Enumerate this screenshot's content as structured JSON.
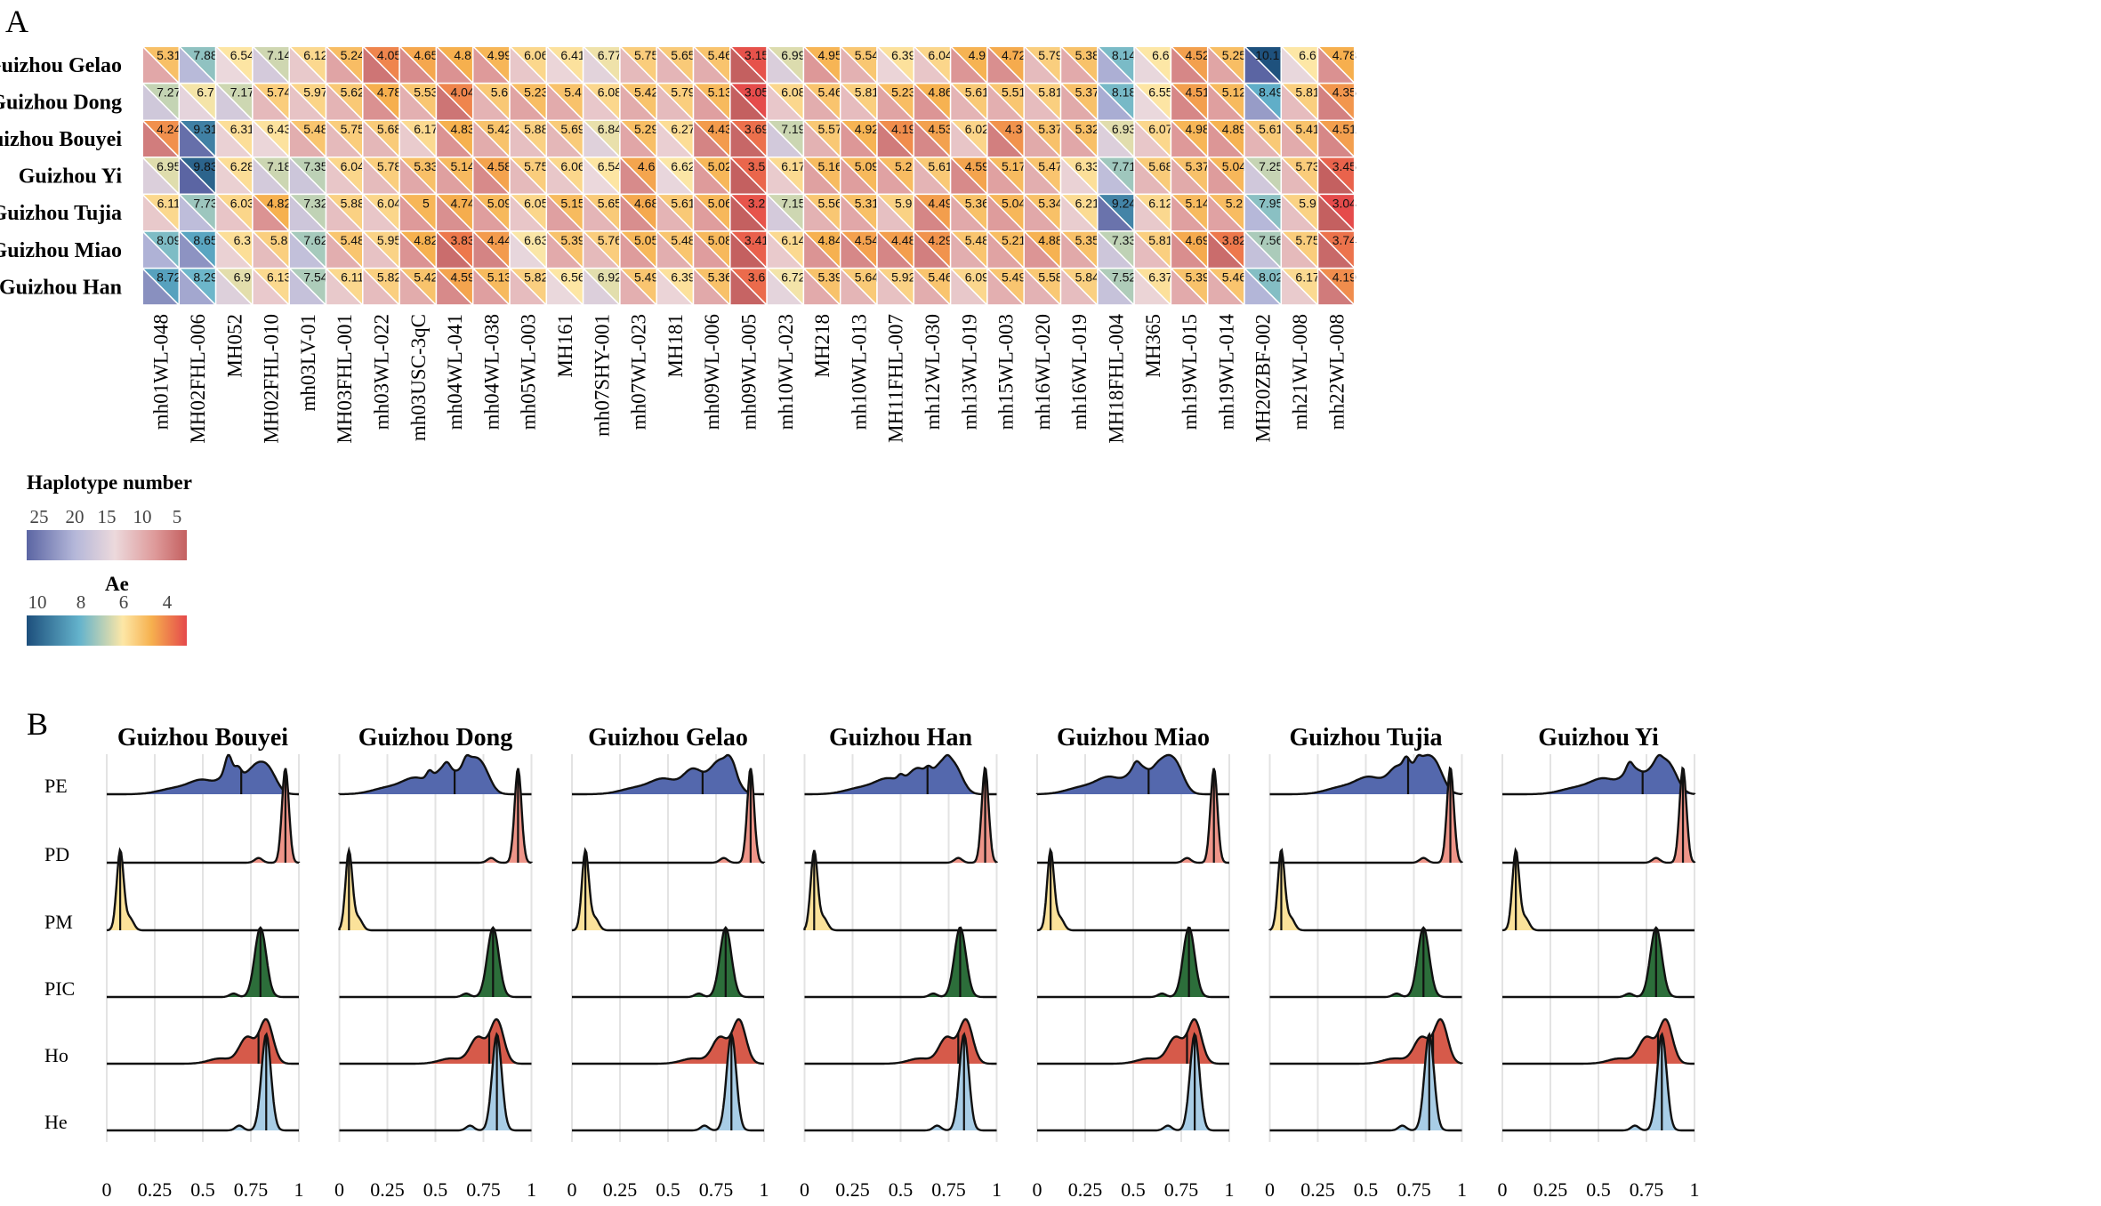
{
  "chart_data": [
    {
      "type": "heatmap",
      "panel": "A",
      "rows": [
        "Guizhou Gelao",
        "Guizhou Dong",
        "Guizhou Bouyei",
        "Guizhou Yi",
        "Guizhou Tujia",
        "Guizhou Miao",
        "Guizhou Han"
      ],
      "columns": [
        "mh01WL-048",
        "MH02FHL-006",
        "MH052",
        "MH02FHL-010",
        "mh03LV-01",
        "MH03FHL-001",
        "mh03WL-022",
        "mh03USC-3qC",
        "mh04WL-041",
        "mh04WL-038",
        "mh05WL-003",
        "MH161",
        "mh07SHY-001",
        "mh07WL-023",
        "MH181",
        "mh09WL-006",
        "mh09WL-005",
        "mh10WL-023",
        "MH218",
        "mh10WL-013",
        "MH11FHL-007",
        "mh12WL-030",
        "mh13WL-019",
        "mh15WL-003",
        "mh16WL-020",
        "mh16WL-019",
        "MH18FHL-004",
        "MH365",
        "mh19WL-015",
        "mh19WL-014",
        "MH20ZBF-002",
        "mh21WL-008",
        "mh22WL-008"
      ],
      "ae_values": [
        [
          "5.31",
          "7.88",
          "6.54",
          "7.14",
          "6.12",
          "5.24",
          "4.05",
          "4.65",
          "4.8",
          "4.99",
          "6.06",
          "6.41",
          "6.77",
          "5.75",
          "5.65",
          "5.46",
          "3.15",
          "6.99",
          "4.95",
          "5.54",
          "6.39",
          "6.04",
          "4.9",
          "4.72",
          "5.79",
          "5.38",
          "8.14",
          "6.6",
          "4.52",
          "5.25",
          "10.17",
          "6.6",
          "4.78"
        ],
        [
          "7.27",
          "6.7",
          "7.17",
          "5.74",
          "5.97",
          "5.62",
          "4.78",
          "5.53",
          "4.04",
          "5.6",
          "5.23",
          "5.4",
          "6.08",
          "5.42",
          "5.79",
          "5.13",
          "3.05",
          "6.08",
          "5.46",
          "5.81",
          "5.23",
          "4.86",
          "5.61",
          "5.51",
          "5.81",
          "5.37",
          "8.18",
          "6.55",
          "4.51",
          "5.12",
          "8.49",
          "5.81",
          "4.35"
        ],
        [
          "4.24",
          "9.31",
          "6.31",
          "6.43",
          "5.48",
          "5.75",
          "5.68",
          "6.17",
          "4.83",
          "5.42",
          "5.88",
          "5.69",
          "6.84",
          "5.29",
          "6.27",
          "4.43",
          "3.69",
          "7.19",
          "5.57",
          "4.92",
          "4.19",
          "4.53",
          "6.02",
          "4.3",
          "5.37",
          "5.32",
          "6.93",
          "6.07",
          "4.98",
          "4.89",
          "5.61",
          "5.41",
          "4.51"
        ],
        [
          "6.95",
          "9.83",
          "6.28",
          "7.18",
          "7.35",
          "6.04",
          "5.78",
          "5.33",
          "5.14",
          "4.58",
          "5.75",
          "6.06",
          "6.54",
          "4.6",
          "6.62",
          "5.02",
          "3.5",
          "6.17",
          "5.16",
          "5.09",
          "5.2",
          "5.61",
          "4.59",
          "5.17",
          "5.47",
          "6.33",
          "7.71",
          "5.68",
          "5.37",
          "5.04",
          "7.25",
          "5.73",
          "3.45"
        ],
        [
          "6.11",
          "7.73",
          "6.03",
          "4.82",
          "7.32",
          "5.88",
          "6.04",
          "5",
          "4.74",
          "5.09",
          "6.05",
          "5.15",
          "5.65",
          "4.68",
          "5.61",
          "5.06",
          "3.2",
          "7.15",
          "5.56",
          "5.31",
          "5.9",
          "4.49",
          "5.36",
          "5.04",
          "5.34",
          "6.21",
          "9.24",
          "6.12",
          "5.14",
          "5.2",
          "7.95",
          "5.9",
          "3.04"
        ],
        [
          "8.09",
          "8.65",
          "6.3",
          "5.8",
          "7.62",
          "5.48",
          "5.95",
          "4.82",
          "3.83",
          "4.44",
          "6.63",
          "5.39",
          "5.76",
          "5.05",
          "5.48",
          "5.08",
          "3.41",
          "6.14",
          "4.84",
          "4.54",
          "4.48",
          "4.29",
          "5.48",
          "5.21",
          "4.88",
          "5.35",
          "7.33",
          "5.81",
          "4.69",
          "3.82",
          "7.56",
          "5.75",
          "3.74"
        ],
        [
          "8.72",
          "8.29",
          "6.9",
          "6.13",
          "7.54",
          "6.11",
          "5.82",
          "5.42",
          "4.59",
          "5.13",
          "5.82",
          "6.56",
          "6.92",
          "5.49",
          "6.39",
          "5.36",
          "3.6",
          "6.72",
          "5.39",
          "5.64",
          "5.92",
          "5.46",
          "6.09",
          "5.49",
          "5.58",
          "5.84",
          "7.52",
          "6.37",
          "5.39",
          "5.46",
          "8.02",
          "6.17",
          "4.19"
        ]
      ],
      "legend_haplotype": {
        "title": "Haplotype number",
        "ticks": [
          "25",
          "20",
          "15",
          "10",
          "5"
        ],
        "colors": [
          "#5b65a3",
          "#b4b7d9",
          "#ecd9dc",
          "#de9a9a",
          "#c46060"
        ]
      },
      "legend_ae": {
        "title": "Ae",
        "ticks": [
          "10",
          "8",
          "6",
          "4"
        ],
        "colors": [
          "#1d4f7c",
          "#64b3cc",
          "#fde7a6",
          "#f6b04e",
          "#e5494b"
        ]
      }
    },
    {
      "type": "ridgeline",
      "panel": "B",
      "facets": [
        "Guizhou Bouyei",
        "Guizhou Dong",
        "Guizhou Gelao",
        "Guizhou Han",
        "Guizhou Miao",
        "Guizhou Tujia",
        "Guizhou Yi"
      ],
      "parameters": [
        "PE",
        "PD",
        "PM",
        "PIC",
        "Ho",
        "He"
      ],
      "parameter_colors": {
        "PE": "#5468ad",
        "PD": "#ee9589",
        "PM": "#fbe29a",
        "PIC": "#2c6e3a",
        "Ho": "#d65a4a",
        "He": "#a8cde6"
      },
      "medians": {
        "Guizhou Bouyei": {
          "PE": 0.7,
          "PD": 0.93,
          "PM": 0.07,
          "PIC": 0.8,
          "Ho": 0.79,
          "He": 0.83
        },
        "Guizhou Dong": {
          "PE": 0.6,
          "PD": 0.93,
          "PM": 0.05,
          "PIC": 0.8,
          "Ho": 0.78,
          "He": 0.82
        },
        "Guizhou Gelao": {
          "PE": 0.68,
          "PD": 0.93,
          "PM": 0.07,
          "PIC": 0.8,
          "Ho": 0.83,
          "He": 0.83
        },
        "Guizhou Han": {
          "PE": 0.64,
          "PD": 0.94,
          "PM": 0.05,
          "PIC": 0.81,
          "Ho": 0.8,
          "He": 0.83
        },
        "Guizhou Miao": {
          "PE": 0.58,
          "PD": 0.92,
          "PM": 0.07,
          "PIC": 0.79,
          "Ho": 0.78,
          "He": 0.82
        },
        "Guizhou Tujia": {
          "PE": 0.72,
          "PD": 0.94,
          "PM": 0.06,
          "PIC": 0.8,
          "Ho": 0.85,
          "He": 0.83
        },
        "Guizhou Yi": {
          "PE": 0.73,
          "PD": 0.94,
          "PM": 0.07,
          "PIC": 0.8,
          "Ho": 0.81,
          "He": 0.83
        }
      },
      "xlim": [
        0,
        1
      ],
      "xticks": [
        "0",
        "0.25",
        "0.5",
        "0.75",
        "1"
      ]
    }
  ],
  "panel_labels": {
    "a": "A",
    "b": "B"
  }
}
